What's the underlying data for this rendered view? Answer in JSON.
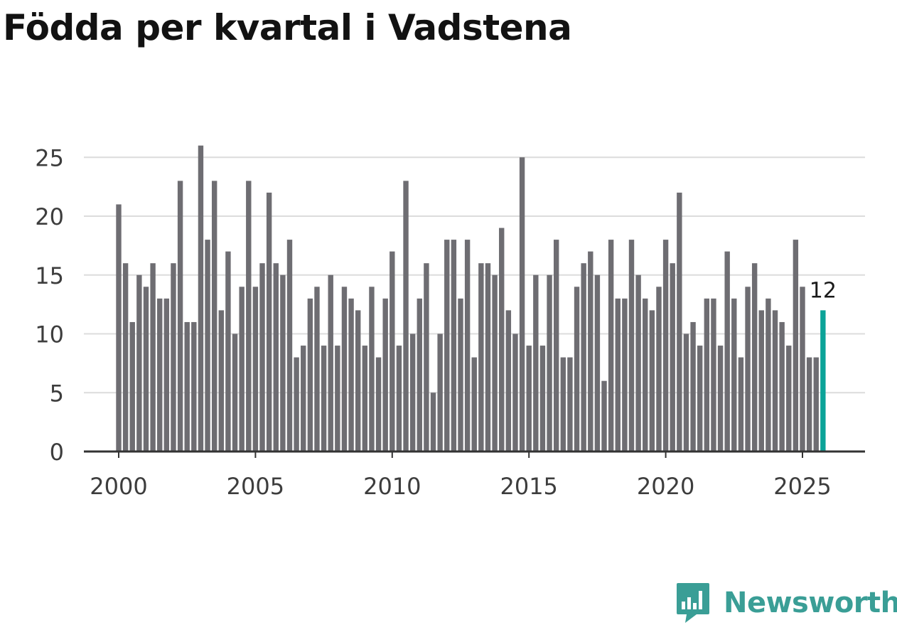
{
  "title": "Födda per kvartal i Vadstena",
  "brand": {
    "name": "Newsworthy",
    "icon": "newsworthy-logo-icon"
  },
  "colors": {
    "bar": "#6e6d72",
    "highlight": "#0ba398",
    "grid": "#dcdcdc",
    "axis": "#333333",
    "brand": "#3a9e96"
  },
  "chart_data": {
    "type": "bar",
    "title": "Födda per kvartal i Vadstena",
    "xlabel": "",
    "ylabel": "",
    "ylim": [
      0,
      27
    ],
    "yticks": [
      0,
      5,
      10,
      15,
      20,
      25
    ],
    "xticks": [
      "2000",
      "2005",
      "2010",
      "2015",
      "2020",
      "2025"
    ],
    "grid": true,
    "start_year": 2000,
    "highlight_last": true,
    "last_label": "12",
    "values": [
      21,
      16,
      11,
      15,
      14,
      16,
      13,
      13,
      16,
      23,
      11,
      11,
      26,
      18,
      23,
      12,
      17,
      10,
      14,
      23,
      14,
      16,
      22,
      16,
      15,
      18,
      8,
      9,
      13,
      14,
      9,
      15,
      9,
      14,
      13,
      12,
      9,
      14,
      8,
      13,
      17,
      9,
      23,
      10,
      13,
      16,
      5,
      10,
      18,
      18,
      13,
      18,
      8,
      16,
      16,
      15,
      19,
      12,
      10,
      25,
      9,
      15,
      9,
      15,
      18,
      8,
      8,
      14,
      16,
      17,
      15,
      6,
      18,
      13,
      13,
      18,
      15,
      13,
      12,
      14,
      18,
      16,
      22,
      10,
      11,
      9,
      13,
      13,
      9,
      17,
      13,
      8,
      14,
      16,
      12,
      13,
      12,
      11,
      9,
      18,
      14,
      8,
      8,
      12
    ]
  }
}
